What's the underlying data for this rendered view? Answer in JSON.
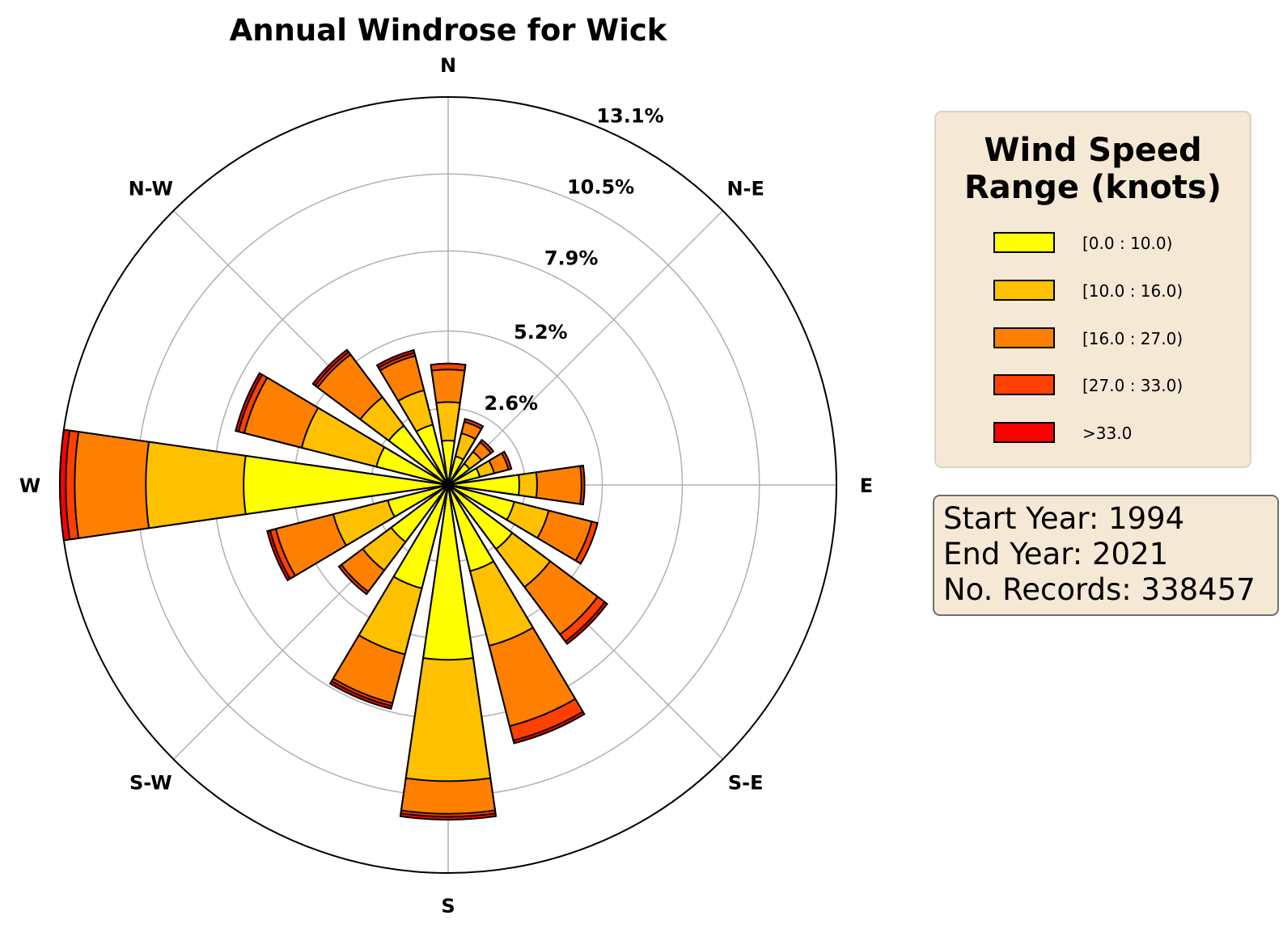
{
  "chart_data": {
    "type": "windrose",
    "title": "Annual Windrose for Wick",
    "directions": [
      "N",
      "N-E",
      "E",
      "S-E",
      "S",
      "S-W",
      "W",
      "N-W"
    ],
    "radial_ticks": [
      "2.6%",
      "5.2%",
      "7.9%",
      "10.5%",
      "13.1%"
    ],
    "radial_tick_values": [
      2.6,
      5.2,
      7.9,
      10.5,
      13.1
    ],
    "rmax": 13.1,
    "sector_angles_deg": [
      0,
      22.5,
      45,
      67.5,
      90,
      112.5,
      135,
      157.5,
      180,
      202.5,
      225,
      247.5,
      270,
      292.5,
      315,
      337.5
    ],
    "speed_bins": [
      "[0.0 : 10.0)",
      "[10.0 : 16.0)",
      "[16.0 : 27.0)",
      "[27.0 : 33.0)",
      ">33.0"
    ],
    "bin_colors": [
      "#ffff00",
      "#ffc000",
      "#ff8000",
      "#ff4000",
      "#ff0000"
    ],
    "cumulative_percent": [
      [
        1.5,
        2.8,
        3.9,
        4.1,
        4.1
      ],
      [
        1.0,
        1.8,
        2.2,
        2.3,
        2.3
      ],
      [
        0.9,
        1.4,
        1.8,
        1.9,
        1.9
      ],
      [
        1.1,
        1.6,
        2.1,
        2.2,
        2.2
      ],
      [
        2.4,
        3.0,
        4.5,
        4.6,
        4.6
      ],
      [
        2.3,
        3.5,
        5.0,
        5.2,
        5.2
      ],
      [
        2.7,
        4.3,
        6.3,
        6.6,
        6.7
      ],
      [
        3.0,
        5.6,
        8.4,
        8.9,
        9.0
      ],
      [
        5.9,
        10.0,
        11.1,
        11.2,
        11.3
      ],
      [
        3.6,
        5.9,
        7.6,
        7.7,
        7.8
      ],
      [
        2.4,
        3.6,
        4.5,
        4.6,
        4.6
      ],
      [
        2.1,
        4.0,
        6.0,
        6.2,
        6.3
      ],
      [
        6.9,
        10.2,
        12.6,
        12.9,
        13.1
      ],
      [
        2.5,
        5.1,
        7.1,
        7.3,
        7.4
      ],
      [
        2.5,
        3.7,
        5.5,
        5.6,
        5.7
      ],
      [
        2.1,
        3.3,
        4.5,
        4.6,
        4.7
      ]
    ],
    "grid": true
  },
  "legend": {
    "title": "Wind Speed\nRange (knots)",
    "items": [
      {
        "label": "[0.0 : 10.0)",
        "color": "#ffff00"
      },
      {
        "label": "[10.0 : 16.0)",
        "color": "#ffc000"
      },
      {
        "label": "[16.0 : 27.0)",
        "color": "#ff8000"
      },
      {
        "label": "[27.0 : 33.0)",
        "color": "#ff4000"
      },
      {
        "label": ">33.0",
        "color": "#ff0000"
      }
    ]
  },
  "info": {
    "start_year": "Start Year: 1994",
    "end_year": "End Year: 2021",
    "records": "No. Records: 338457"
  }
}
